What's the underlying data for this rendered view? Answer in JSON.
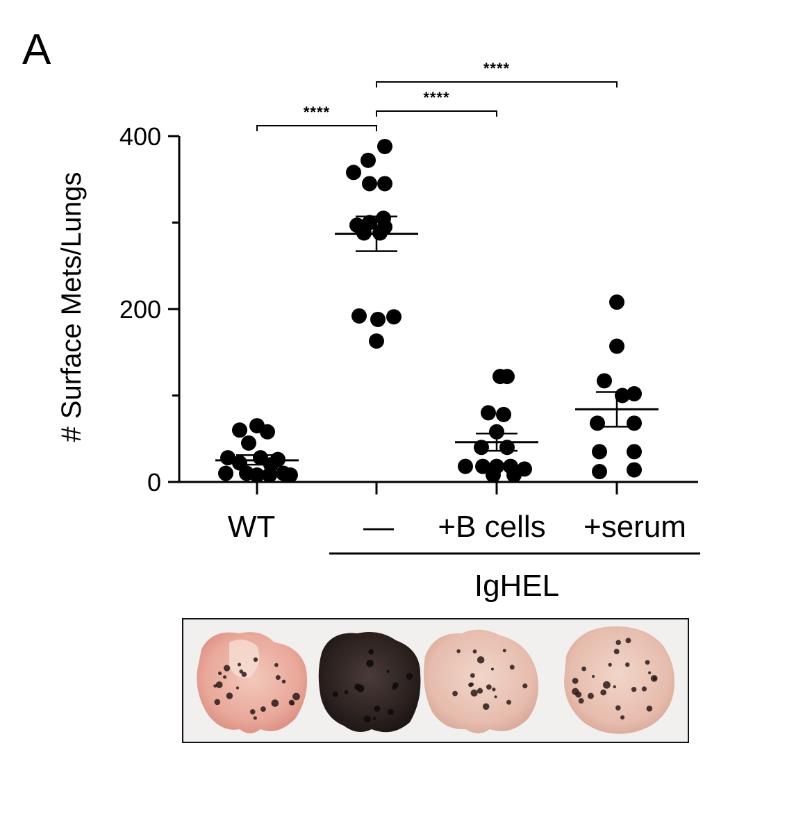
{
  "figure": {
    "panel_label": "A",
    "photo_alt": "lung photographs"
  },
  "chart_data": {
    "type": "scatter",
    "ylabel": "# Surface Mets/Lungs",
    "ylim": [
      0,
      400
    ],
    "yticks": [
      0,
      200,
      400
    ],
    "y_minor_ticks": [
      100,
      300
    ],
    "categories": [
      "WT",
      "—",
      "+B cells",
      "+serum"
    ],
    "group_label": "IgHEL",
    "group_members": [
      "—",
      "+B cells",
      "+serum"
    ],
    "series": [
      {
        "category": "WT",
        "points": [
          {
            "o": 0.0,
            "y": 65
          },
          {
            "o": -0.25,
            "y": 60
          },
          {
            "o": 0.15,
            "y": 58
          },
          {
            "o": -0.12,
            "y": 45
          },
          {
            "o": -0.42,
            "y": 28
          },
          {
            "o": 0.05,
            "y": 28
          },
          {
            "o": 0.3,
            "y": 26
          },
          {
            "o": -0.25,
            "y": 22
          },
          {
            "o": 0.2,
            "y": 20
          },
          {
            "o": -0.45,
            "y": 10
          },
          {
            "o": -0.15,
            "y": 10
          },
          {
            "o": 0.0,
            "y": 8
          },
          {
            "o": 0.18,
            "y": 8
          },
          {
            "o": 0.38,
            "y": 10
          },
          {
            "o": 0.48,
            "y": 8
          }
        ],
        "mean": 25,
        "sem_low": 20,
        "sem_high": 31
      },
      {
        "category": "—",
        "points": [
          {
            "o": 0.12,
            "y": 388
          },
          {
            "o": -0.12,
            "y": 372
          },
          {
            "o": -0.33,
            "y": 358
          },
          {
            "o": -0.1,
            "y": 345
          },
          {
            "o": 0.12,
            "y": 345
          },
          {
            "o": 0.1,
            "y": 305
          },
          {
            "o": -0.28,
            "y": 297
          },
          {
            "o": -0.1,
            "y": 300
          },
          {
            "o": 0.12,
            "y": 295
          },
          {
            "o": -0.18,
            "y": 288
          },
          {
            "o": 0.05,
            "y": 288
          },
          {
            "o": -0.25,
            "y": 192
          },
          {
            "o": 0.02,
            "y": 188
          },
          {
            "o": 0.25,
            "y": 191
          },
          {
            "o": 0.0,
            "y": 163
          }
        ],
        "mean": 287,
        "sem_low": 267,
        "sem_high": 307
      },
      {
        "category": "+B cells",
        "points": [
          {
            "o": 0.05,
            "y": 122
          },
          {
            "o": 0.15,
            "y": 122
          },
          {
            "o": -0.12,
            "y": 80
          },
          {
            "o": 0.1,
            "y": 78
          },
          {
            "o": 0.0,
            "y": 58
          },
          {
            "o": -0.22,
            "y": 40
          },
          {
            "o": 0.15,
            "y": 40
          },
          {
            "o": -0.45,
            "y": 18
          },
          {
            "o": -0.2,
            "y": 18
          },
          {
            "o": 0.0,
            "y": 18
          },
          {
            "o": 0.2,
            "y": 18
          },
          {
            "o": 0.4,
            "y": 15
          },
          {
            "o": -0.05,
            "y": 8
          },
          {
            "o": 0.25,
            "y": 8
          }
        ],
        "mean": 46,
        "sem_low": 36,
        "sem_high": 56
      },
      {
        "category": "+serum",
        "points": [
          {
            "o": 0.0,
            "y": 208
          },
          {
            "o": 0.0,
            "y": 157
          },
          {
            "o": -0.18,
            "y": 117
          },
          {
            "o": 0.08,
            "y": 100
          },
          {
            "o": 0.25,
            "y": 102
          },
          {
            "o": -0.28,
            "y": 68
          },
          {
            "o": 0.25,
            "y": 68
          },
          {
            "o": -0.25,
            "y": 35
          },
          {
            "o": 0.25,
            "y": 35
          },
          {
            "o": -0.25,
            "y": 12
          },
          {
            "o": 0.25,
            "y": 14
          }
        ],
        "mean": 84,
        "sem_low": 64,
        "sem_high": 104
      }
    ],
    "comparisons": [
      {
        "from": 0,
        "to": 1,
        "label": "****"
      },
      {
        "from": 1,
        "to": 2,
        "label": "****"
      },
      {
        "from": 1,
        "to": 3,
        "label": "****"
      }
    ]
  }
}
